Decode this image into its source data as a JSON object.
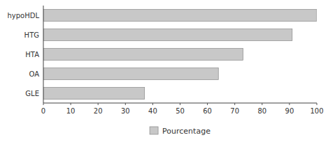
{
  "chart_data": {
    "type": "bar",
    "orientation": "horizontal",
    "categories": [
      "hypoHDL",
      "HTG",
      "HTA",
      "OA",
      "GLE"
    ],
    "series": [
      {
        "name": "Pourcentage",
        "color": "#c8c8c8",
        "values": [
          100,
          91,
          73,
          64,
          37
        ]
      }
    ],
    "xlim": [
      0,
      100
    ],
    "xticks": [
      0,
      10,
      20,
      30,
      40,
      50,
      60,
      70,
      80,
      90,
      100
    ],
    "grid": false,
    "legend": "bottom"
  }
}
